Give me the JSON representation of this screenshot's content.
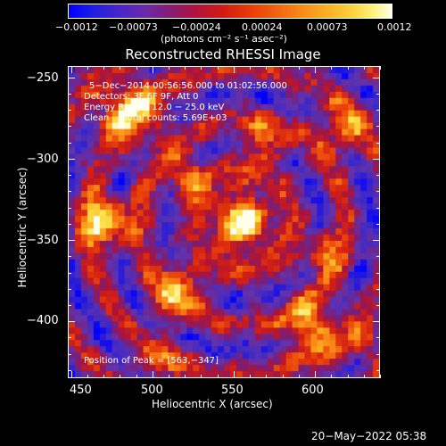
{
  "colorbar": {
    "ticks": [
      "−0.0012",
      "−0.00073",
      "−0.00024",
      "0.00024",
      "0.00073",
      "0.0012"
    ],
    "units": "(photons cm⁻² s⁻¹ asec⁻²)"
  },
  "title": "Reconstructed RHESSI Image",
  "info": {
    "line1": "5−Dec−2014 00:56:56.000 to 01:02:56.000",
    "line2": "Detectors: 3F 6F 9F, Att 0",
    "line3": "Energy Range: 12.0 − 25.0 keV",
    "line4": "Clean     Total counts: 5.69E+03",
    "peak": "Position of Peak = [563,−347]"
  },
  "axes": {
    "xlabel": "Heliocentric X (arcsec)",
    "ylabel": "Heliocentric Y (arcsec)",
    "xticks": [
      "450",
      "500",
      "550",
      "600"
    ],
    "yticks": [
      "−250",
      "−300",
      "−350",
      "−400"
    ]
  },
  "date_stamp": "20−May−2022 05:38",
  "chart_data": {
    "type": "heatmap",
    "title": "Reconstructed RHESSI Image",
    "xlabel": "Heliocentric X (arcsec)",
    "ylabel": "Heliocentric Y (arcsec)",
    "xlim": [
      448,
      640
    ],
    "ylim": [
      -435,
      -243
    ],
    "clim": [
      -0.0012,
      0.0012
    ],
    "peak": [
      563,
      -347
    ],
    "colormap": "blue-purple-red-orange-yellow-white"
  }
}
